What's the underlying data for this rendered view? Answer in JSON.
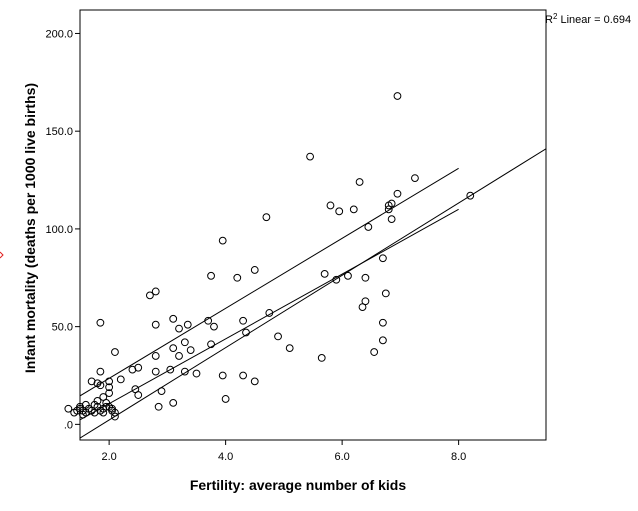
{
  "chart_data": {
    "type": "scatter",
    "xlabel": "Fertility: average number of kids",
    "ylabel": "Infant mortality (deaths per 1000 live births)",
    "xlim": [
      1.5,
      9.5
    ],
    "ylim": [
      -8,
      212
    ],
    "x_ticks": [
      2.0,
      4.0,
      6.0,
      8.0
    ],
    "x_tick_labels": [
      "2.0",
      "4.0",
      "6.0",
      "8.0"
    ],
    "y_ticks": [
      0,
      50,
      100,
      150,
      200
    ],
    "y_tick_labels": [
      ".0",
      "50.0",
      "100.0",
      "150.0",
      "200.0"
    ],
    "grid": false,
    "fit_annotation": {
      "superscript_base": "R",
      "superscript": "2",
      "text": " Linear = 0.694"
    },
    "fit_line": {
      "x": [
        1.5,
        9.5
      ],
      "y": [
        -7,
        141
      ]
    },
    "confidence_band_upper": {
      "x": [
        1.3,
        8.0
      ],
      "y": [
        11,
        131
      ]
    },
    "confidence_band_lower": {
      "x": [
        1.3,
        8.0
      ],
      "y": [
        -1,
        110
      ]
    },
    "points": [
      [
        1.3,
        8
      ],
      [
        1.4,
        6
      ],
      [
        1.45,
        7
      ],
      [
        1.5,
        9
      ],
      [
        1.5,
        8
      ],
      [
        1.55,
        7
      ],
      [
        1.55,
        5
      ],
      [
        1.6,
        10
      ],
      [
        1.6,
        6
      ],
      [
        1.65,
        8
      ],
      [
        1.7,
        22
      ],
      [
        1.7,
        7
      ],
      [
        1.75,
        10
      ],
      [
        1.75,
        6
      ],
      [
        1.8,
        9
      ],
      [
        1.8,
        21
      ],
      [
        1.8,
        12
      ],
      [
        1.85,
        20
      ],
      [
        1.85,
        7
      ],
      [
        1.85,
        27
      ],
      [
        1.85,
        52
      ],
      [
        1.9,
        14
      ],
      [
        1.9,
        8
      ],
      [
        1.9,
        6
      ],
      [
        1.95,
        9
      ],
      [
        1.95,
        11
      ],
      [
        2.0,
        19
      ],
      [
        2.0,
        22
      ],
      [
        2.0,
        16
      ],
      [
        2.0,
        9
      ],
      [
        2.05,
        8
      ],
      [
        2.05,
        7
      ],
      [
        2.1,
        6
      ],
      [
        2.1,
        4
      ],
      [
        2.1,
        37
      ],
      [
        2.2,
        23
      ],
      [
        2.4,
        28
      ],
      [
        2.45,
        18
      ],
      [
        2.5,
        15
      ],
      [
        2.5,
        29
      ],
      [
        2.7,
        66
      ],
      [
        2.8,
        68
      ],
      [
        2.8,
        51
      ],
      [
        2.8,
        35
      ],
      [
        2.8,
        27
      ],
      [
        2.85,
        9
      ],
      [
        2.9,
        17
      ],
      [
        3.05,
        28
      ],
      [
        3.1,
        39
      ],
      [
        3.1,
        54
      ],
      [
        3.1,
        11
      ],
      [
        3.2,
        49
      ],
      [
        3.2,
        35
      ],
      [
        3.3,
        27
      ],
      [
        3.3,
        42
      ],
      [
        3.35,
        51
      ],
      [
        3.4,
        38
      ],
      [
        3.5,
        26
      ],
      [
        3.7,
        53
      ],
      [
        3.75,
        41
      ],
      [
        3.75,
        76
      ],
      [
        3.8,
        50
      ],
      [
        3.95,
        94
      ],
      [
        3.95,
        25
      ],
      [
        4.0,
        13
      ],
      [
        4.2,
        75
      ],
      [
        4.3,
        25
      ],
      [
        4.3,
        53
      ],
      [
        4.35,
        47
      ],
      [
        4.5,
        79
      ],
      [
        4.5,
        22
      ],
      [
        4.7,
        106
      ],
      [
        4.75,
        57
      ],
      [
        4.9,
        45
      ],
      [
        5.1,
        39
      ],
      [
        5.45,
        137
      ],
      [
        5.65,
        34
      ],
      [
        5.7,
        77
      ],
      [
        5.8,
        112
      ],
      [
        5.9,
        74
      ],
      [
        5.95,
        109
      ],
      [
        6.1,
        76
      ],
      [
        6.2,
        110
      ],
      [
        6.3,
        124
      ],
      [
        6.35,
        60
      ],
      [
        6.4,
        63
      ],
      [
        6.4,
        75
      ],
      [
        6.45,
        101
      ],
      [
        6.55,
        37
      ],
      [
        6.7,
        52
      ],
      [
        6.7,
        43
      ],
      [
        6.7,
        85
      ],
      [
        6.75,
        67
      ],
      [
        6.8,
        112
      ],
      [
        6.85,
        113
      ],
      [
        6.8,
        110
      ],
      [
        6.85,
        105
      ],
      [
        6.95,
        168
      ],
      [
        6.95,
        118
      ],
      [
        7.25,
        126
      ],
      [
        8.2,
        117
      ]
    ]
  }
}
